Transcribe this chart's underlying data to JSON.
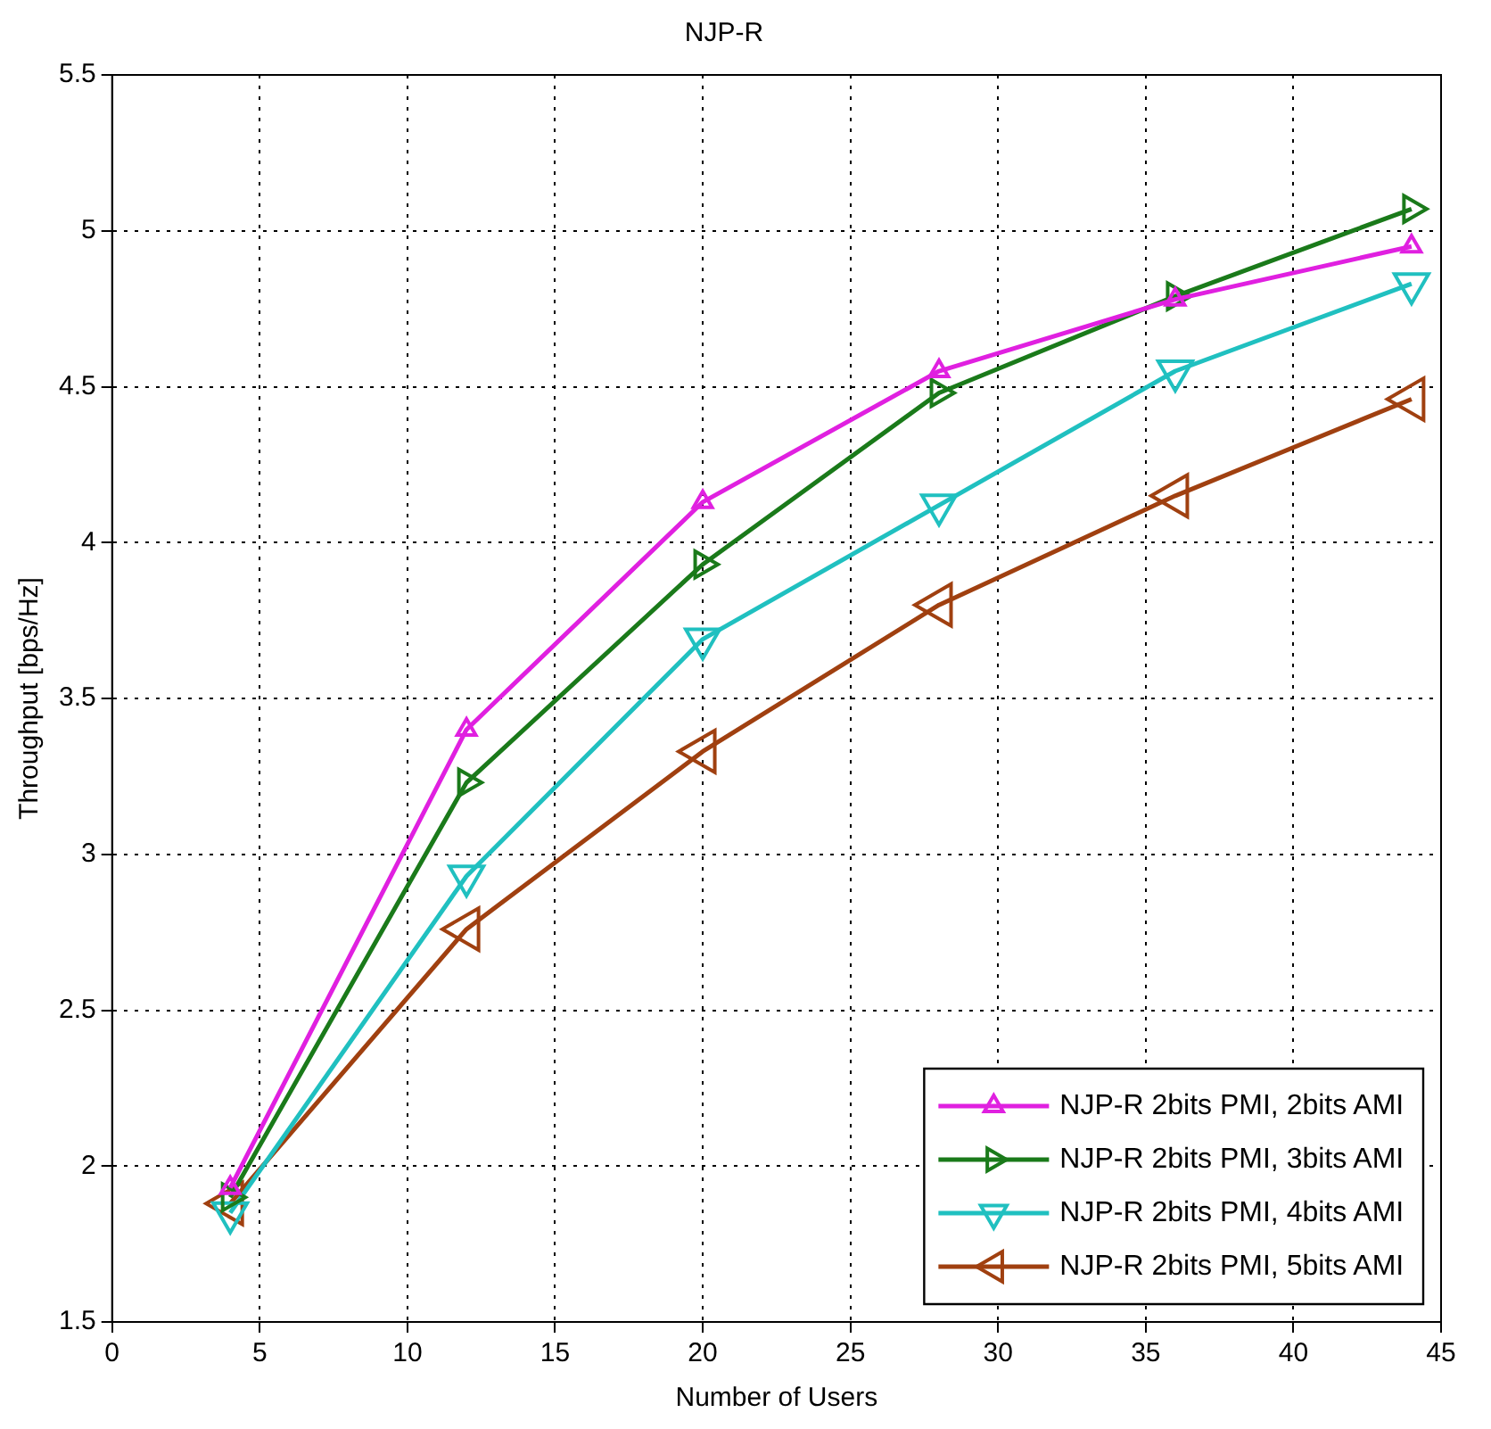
{
  "chart_data": {
    "type": "line",
    "title": "NJP-R",
    "xlabel": "Number of Users",
    "ylabel": "Throughput [bps/Hz]",
    "x": [
      4,
      12,
      20,
      28,
      36,
      44
    ],
    "series": [
      {
        "name": "NJP-R 2bits PMI, 2bits AMI",
        "color": "#e020e0",
        "values": [
          1.93,
          3.4,
          4.13,
          4.55,
          4.78,
          4.95
        ]
      },
      {
        "name": "NJP-R 2bits PMI, 3bits AMI",
        "color": "#1a7a1a",
        "values": [
          1.9,
          3.23,
          3.93,
          4.48,
          4.79,
          5.07
        ]
      },
      {
        "name": "NJP-R 2bits PMI, 4bits AMI",
        "color": "#20c0c0",
        "values": [
          1.85,
          2.93,
          3.69,
          4.12,
          4.55,
          4.83
        ]
      },
      {
        "name": "NJP-R 2bits PMI, 5bits AMI",
        "color": "#a04010",
        "values": [
          1.88,
          2.76,
          3.33,
          3.8,
          4.15,
          4.46
        ]
      }
    ],
    "xlim": [
      0,
      45
    ],
    "xticks": [
      0,
      5,
      10,
      15,
      20,
      25,
      30,
      35,
      40,
      45
    ],
    "ylim": [
      1.5,
      5.5
    ],
    "yticks": [
      1.5,
      2,
      2.5,
      3,
      3.5,
      4,
      4.5,
      5,
      5.5
    ],
    "grid": true,
    "legend": "bottom right",
    "marker": "triangle",
    "line_style": "solid"
  }
}
